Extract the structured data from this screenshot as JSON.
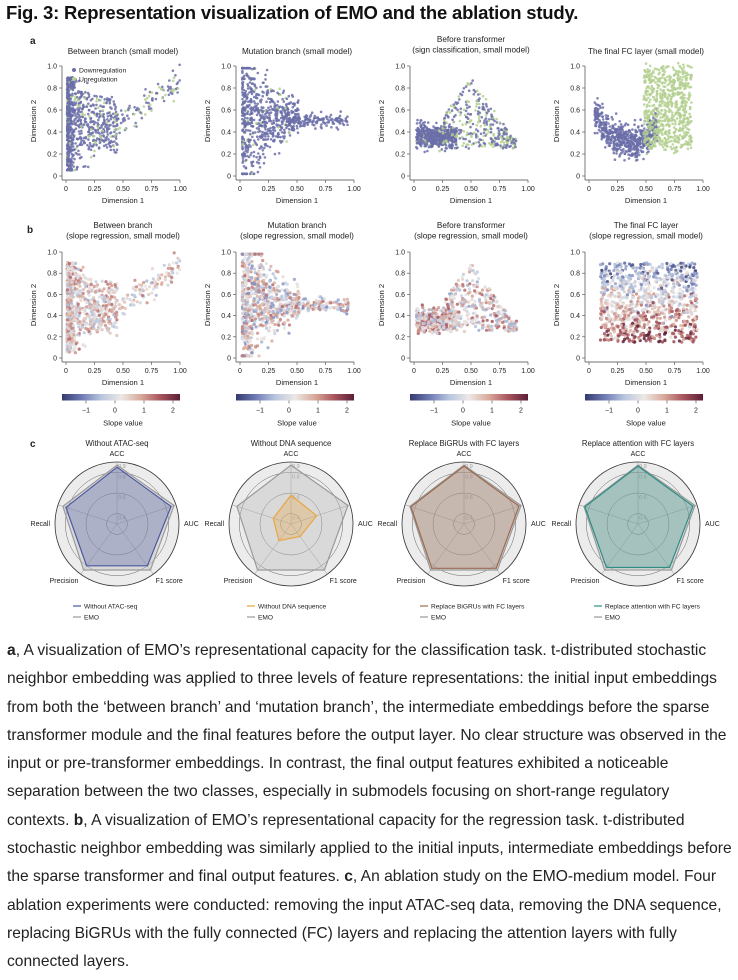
{
  "figure_title": "Fig. 3: Representation visualization of EMO and the ablation study.",
  "panel_labels": {
    "a": "a",
    "b": "b",
    "c": "c"
  },
  "colors": {
    "downregulation": "#6b6fa8",
    "upregulation": "#b4d08f",
    "without_atac": "#4a57a0",
    "without_dna": "#e8a640",
    "replace_bigru": "#9c6b4e",
    "replace_attention": "#2f8e84",
    "emo": "#9a9a9a",
    "slope_colormap": [
      "#353a6e",
      "#6f7bb4",
      "#b9c6de",
      "#ece8e6",
      "#d9aa9a",
      "#a9545e",
      "#5b1e36"
    ]
  },
  "chart_data": [
    {
      "type": "scatter",
      "panel": "a",
      "title": "Between branch (small model)",
      "xlabel": "Dimension 1",
      "ylabel": "Dimension 2",
      "xlim": [
        0,
        1
      ],
      "ylim": [
        0,
        1
      ],
      "legend": [
        "Downregulation",
        "Upregulation"
      ],
      "legend_position": "top-left",
      "xticks": [
        "0",
        "0.25",
        "0.50",
        "0.75",
        "1.00"
      ],
      "yticks": [
        "0",
        "0.2",
        "0.4",
        "0.6",
        "0.8",
        "1.0"
      ]
    },
    {
      "type": "scatter",
      "panel": "a",
      "title": "Mutation branch (small model)",
      "xlabel": "Dimension 1",
      "ylabel": "Dimension 2",
      "xlim": [
        0,
        1
      ],
      "ylim": [
        0,
        1
      ],
      "xticks": [
        "0",
        "0.25",
        "0.50",
        "0.75",
        "1.00"
      ],
      "yticks": [
        "0",
        "0.2",
        "0.4",
        "0.6",
        "0.8",
        "1.0"
      ]
    },
    {
      "type": "scatter",
      "panel": "a",
      "title": "Before transformer\n(sign classification, small model)",
      "xlabel": "Dimension 1",
      "ylabel": "Dimension 2",
      "xlim": [
        0,
        1
      ],
      "ylim": [
        0,
        1
      ],
      "xticks": [
        "0",
        "0.25",
        "0.50",
        "0.75",
        "1.00"
      ],
      "yticks": [
        "0",
        "0.2",
        "0.4",
        "0.6",
        "0.8",
        "1.0"
      ]
    },
    {
      "type": "scatter",
      "panel": "a",
      "title": "The final FC layer (small model)",
      "xlabel": "Dimension 1",
      "ylabel": "Dimension 2",
      "xlim": [
        0,
        1
      ],
      "ylim": [
        0,
        1
      ],
      "xticks": [
        "0",
        "0.25",
        "0.50",
        "0.75",
        "1.00"
      ],
      "yticks": [
        "0",
        "0.2",
        "0.4",
        "0.6",
        "0.8",
        "1.0"
      ]
    },
    {
      "type": "scatter",
      "panel": "b",
      "title": "Between branch\n(slope regression, small model)",
      "xlabel": "Dimension 1",
      "ylabel": "Dimension 2",
      "xlim": [
        0,
        1
      ],
      "ylim": [
        0,
        1
      ],
      "colorbar_label": "Slope value",
      "colorbar_ticks": [
        "−1",
        "0",
        "1",
        "2"
      ],
      "xticks": [
        "0",
        "0.25",
        "0.50",
        "0.75",
        "1.00"
      ],
      "yticks": [
        "0",
        "0.2",
        "0.4",
        "0.6",
        "0.8",
        "1.0"
      ]
    },
    {
      "type": "scatter",
      "panel": "b",
      "title": "Mutation branch\n(slope regression, small model)",
      "xlabel": "Dimension 1",
      "ylabel": "Dimension 2",
      "xlim": [
        0,
        1
      ],
      "ylim": [
        0,
        1
      ],
      "colorbar_label": "Slope value",
      "colorbar_ticks": [
        "−1",
        "0",
        "1",
        "2"
      ],
      "xticks": [
        "0",
        "0.25",
        "0.50",
        "0.75",
        "1.00"
      ],
      "yticks": [
        "0",
        "0.2",
        "0.4",
        "0.6",
        "0.8",
        "1.0"
      ]
    },
    {
      "type": "scatter",
      "panel": "b",
      "title": "Before transformer\n(slope regression, small model)",
      "xlabel": "Dimension 1",
      "ylabel": "Dimension 2",
      "xlim": [
        0,
        1
      ],
      "ylim": [
        0,
        1
      ],
      "colorbar_label": "Slope value",
      "colorbar_ticks": [
        "−1",
        "0",
        "1",
        "2"
      ],
      "xticks": [
        "0",
        "0.25",
        "0.50",
        "0.75",
        "1.00"
      ],
      "yticks": [
        "0",
        "0.2",
        "0.4",
        "0.6",
        "0.8",
        "1.0"
      ]
    },
    {
      "type": "scatter",
      "panel": "b",
      "title": "The final FC layer\n(slope regression, small model)",
      "xlabel": "Dimension 1",
      "ylabel": "Dimension 2",
      "xlim": [
        0,
        1
      ],
      "ylim": [
        0,
        1
      ],
      "colorbar_label": "Slope value",
      "colorbar_ticks": [
        "−1",
        "0",
        "1",
        "2"
      ],
      "xticks": [
        "0",
        "0.25",
        "0.50",
        "0.75",
        "1.00"
      ],
      "yticks": [
        "0",
        "0.2",
        "0.4",
        "0.6",
        "0.8",
        "1.0"
      ]
    },
    {
      "type": "radar",
      "panel": "c",
      "title": "Without ATAC-seq",
      "axes": [
        "ACC",
        "AUC",
        "F1 score",
        "Precision",
        "Recall"
      ],
      "rlim": [
        0.3,
        0.9
      ],
      "rticks": [
        "0.4",
        "0.6",
        "0.8",
        "0.9"
      ],
      "series": [
        {
          "name": "Without ATAC-seq",
          "values": [
            0.85,
            0.85,
            0.8,
            0.8,
            0.82
          ]
        },
        {
          "name": "EMO",
          "values": [
            0.87,
            0.88,
            0.85,
            0.85,
            0.85
          ]
        }
      ]
    },
    {
      "type": "radar",
      "panel": "c",
      "title": "Without DNA sequence",
      "axes": [
        "ACC",
        "AUC",
        "F1 score",
        "Precision",
        "Recall"
      ],
      "rlim": [
        0.3,
        0.9
      ],
      "rticks": [
        "0.4",
        "0.6",
        "0.8",
        "0.9"
      ],
      "series": [
        {
          "name": "Without DNA sequence",
          "values": [
            0.58,
            0.56,
            0.45,
            0.5,
            0.48
          ]
        },
        {
          "name": "EMO",
          "values": [
            0.87,
            0.88,
            0.85,
            0.85,
            0.85
          ]
        }
      ]
    },
    {
      "type": "radar",
      "panel": "c",
      "title": "Replace BiGRUs with FC layers",
      "axes": [
        "ACC",
        "AUC",
        "F1 score",
        "Precision",
        "Recall"
      ],
      "rlim": [
        0.3,
        0.9
      ],
      "rticks": [
        "0.4",
        "0.6",
        "0.8",
        "0.9"
      ],
      "series": [
        {
          "name": "Replace BiGRUs with FC layers",
          "values": [
            0.86,
            0.86,
            0.83,
            0.83,
            0.84
          ]
        },
        {
          "name": "EMO",
          "values": [
            0.87,
            0.88,
            0.85,
            0.85,
            0.85
          ]
        }
      ]
    },
    {
      "type": "radar",
      "panel": "c",
      "title": "Replace attention with FC layers",
      "axes": [
        "ACC",
        "AUC",
        "F1 score",
        "Precision",
        "Recall"
      ],
      "rlim": [
        0.3,
        0.9
      ],
      "rticks": [
        "0.4",
        "0.6",
        "0.8",
        "0.9"
      ],
      "series": [
        {
          "name": "Replace attention with FC layers",
          "values": [
            0.86,
            0.86,
            0.82,
            0.82,
            0.84
          ]
        },
        {
          "name": "EMO",
          "values": [
            0.87,
            0.88,
            0.85,
            0.85,
            0.85
          ]
        }
      ]
    }
  ],
  "caption": {
    "a_label": "a",
    "a_text": ", A visualization of EMO’s representational capacity for the classification task. t-distributed stochastic neighbor embedding was applied to three levels of feature representations: the initial input embeddings from both the ‘between branch’ and ‘mutation branch’, the intermediate embeddings before the sparse transformer module and the final features before the output layer. No clear structure was observed in the input or pre-transformer embeddings. In contrast, the final output features exhibited a noticeable separation between the two classes, especially in submodels focusing on short-range regulatory contexts. ",
    "b_label": "b",
    "b_text": ", A visualization of EMO’s representational capacity for the regression task. t-distributed stochastic neighbor embedding was similarly applied to the initial inputs, intermediate embeddings before the sparse transformer and final output features. ",
    "c_label": "c",
    "c_text": ", An ablation study on the EMO-medium model. Four ablation experiments were conducted: removing the input ATAC-seq data, removing the DNA sequence, replacing BiGRUs with the fully connected (FC) layers and replacing the attention layers with fully connected layers."
  }
}
